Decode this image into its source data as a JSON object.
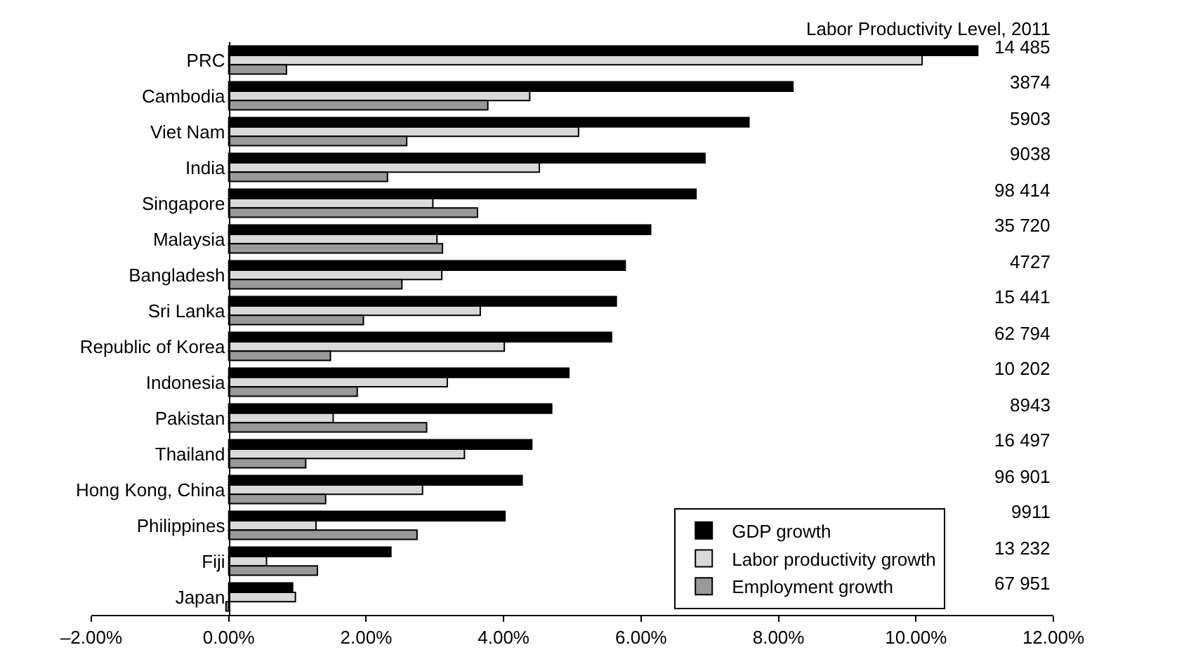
{
  "chart_data": {
    "type": "bar",
    "orientation": "horizontal",
    "categories": [
      "PRC",
      "Cambodia",
      "Viet Nam",
      "India",
      "Singapore",
      "Malaysia",
      "Bangladesh",
      "Sri Lanka",
      "Republic of Korea",
      "Indonesia",
      "Pakistan",
      "Thailand",
      "Hong Kong, China",
      "Philippines",
      "Fiji",
      "Japan"
    ],
    "series": [
      {
        "name": "GDP growth",
        "color": "#000000",
        "values": [
          10.9,
          8.21,
          7.57,
          6.93,
          6.8,
          6.14,
          5.77,
          5.64,
          5.57,
          4.95,
          4.7,
          4.41,
          4.27,
          4.02,
          2.36,
          0.93
        ]
      },
      {
        "name": "Labor productivity growth",
        "color": "#d9d9d9",
        "values": [
          10.09,
          4.38,
          5.09,
          4.52,
          2.97,
          3.03,
          3.1,
          3.66,
          4.01,
          3.18,
          1.52,
          3.43,
          2.82,
          1.27,
          0.55,
          0.97
        ]
      },
      {
        "name": "Employment growth",
        "color": "#999999",
        "values": [
          0.84,
          3.77,
          2.59,
          2.31,
          3.62,
          3.11,
          2.52,
          1.96,
          1.48,
          1.87,
          2.88,
          1.12,
          1.41,
          2.74,
          1.29,
          -0.04
        ]
      }
    ],
    "xlim": [
      -2,
      12
    ],
    "xticks": [
      {
        "value": -2,
        "label": "–2.00%"
      },
      {
        "value": 0,
        "label": "0.00%"
      },
      {
        "value": 2,
        "label": "2.00%"
      },
      {
        "value": 4,
        "label": "4.00%"
      },
      {
        "value": 6,
        "label": "6.00%"
      },
      {
        "value": 8,
        "label": "8.00%"
      },
      {
        "value": 10,
        "label": "10.00%"
      },
      {
        "value": 12,
        "label": "12.00%"
      }
    ],
    "grid": false,
    "legend": "bottom right",
    "annotations": [
      "Labor Productivity Level, 2011",
      "14 485",
      "3874",
      "5903",
      "9038",
      "98 414",
      "35 720",
      "4727",
      "15 441",
      "62 794",
      "10 202",
      "8943",
      "16 497",
      "96 901",
      "9911",
      "13 232",
      "67 951"
    ]
  }
}
